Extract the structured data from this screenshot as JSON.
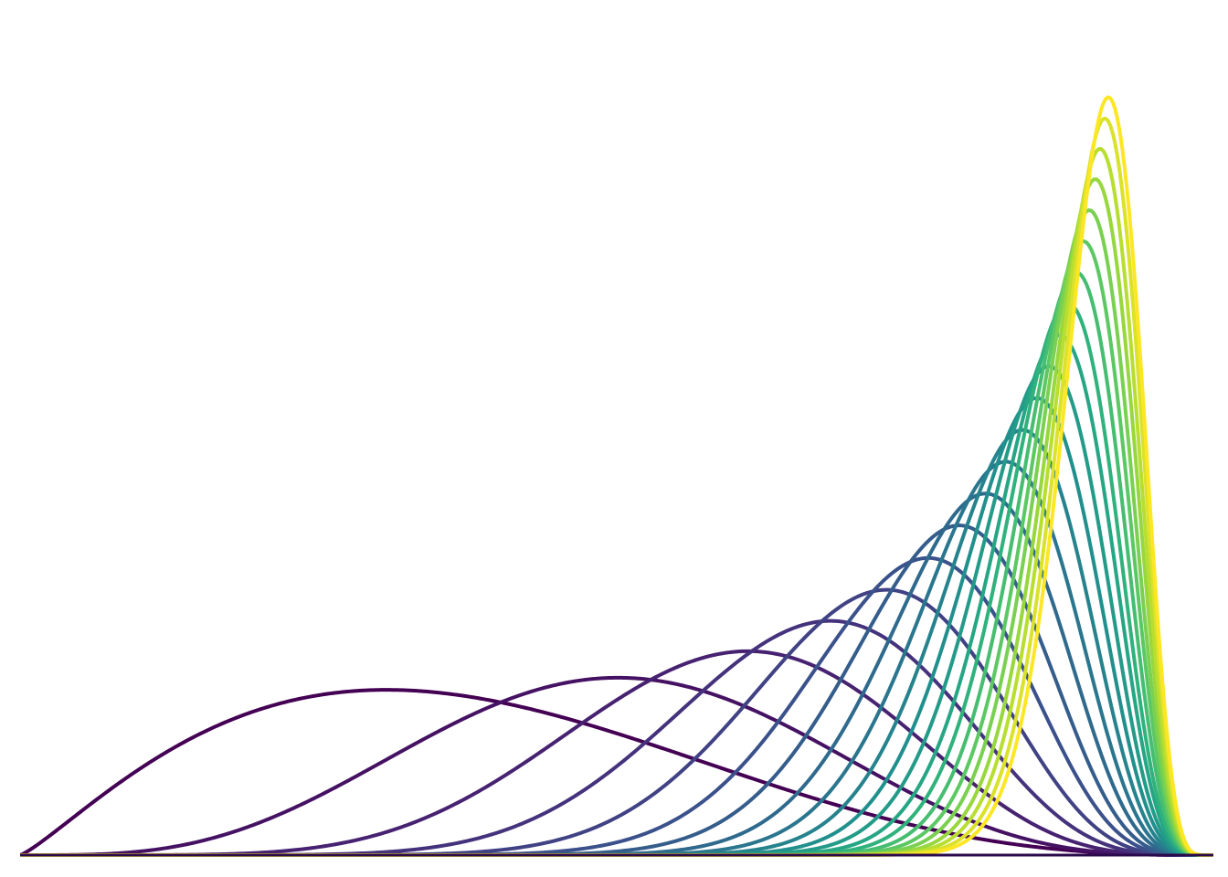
{
  "chart_data": {
    "type": "line",
    "title": "",
    "xlabel": "",
    "ylabel": "",
    "axes_visible": false,
    "grid": false,
    "legend": "none",
    "baseline_color": "#2a0a4a",
    "colormap": "viridis",
    "series_peaks": [
      {
        "peak_x": 0.307,
        "peak_y": 0.218
      },
      {
        "peak_x": 0.501,
        "peak_y": 0.234
      },
      {
        "peak_x": 0.61,
        "peak_y": 0.269
      },
      {
        "peak_x": 0.679,
        "peak_y": 0.309
      },
      {
        "peak_x": 0.726,
        "peak_y": 0.35
      },
      {
        "peak_x": 0.761,
        "peak_y": 0.392
      },
      {
        "peak_x": 0.787,
        "peak_y": 0.435
      },
      {
        "peak_x": 0.809,
        "peak_y": 0.477
      },
      {
        "peak_x": 0.826,
        "peak_y": 0.519
      },
      {
        "peak_x": 0.84,
        "peak_y": 0.561
      },
      {
        "peak_x": 0.852,
        "peak_y": 0.603
      },
      {
        "peak_x": 0.862,
        "peak_y": 0.645
      },
      {
        "peak_x": 0.871,
        "peak_y": 0.686
      },
      {
        "peak_x": 0.878,
        "peak_y": 0.728
      },
      {
        "peak_x": 0.885,
        "peak_y": 0.769
      },
      {
        "peak_x": 0.891,
        "peak_y": 0.81
      },
      {
        "peak_x": 0.896,
        "peak_y": 0.851
      },
      {
        "peak_x": 0.901,
        "peak_y": 0.892
      },
      {
        "peak_x": 0.905,
        "peak_y": 0.932
      },
      {
        "peak_x": 0.909,
        "peak_y": 0.972
      },
      {
        "peak_x": 0.912,
        "peak_y": 1.0
      }
    ],
    "xlim": [
      0,
      1
    ],
    "ylim": [
      0,
      1.08
    ]
  }
}
